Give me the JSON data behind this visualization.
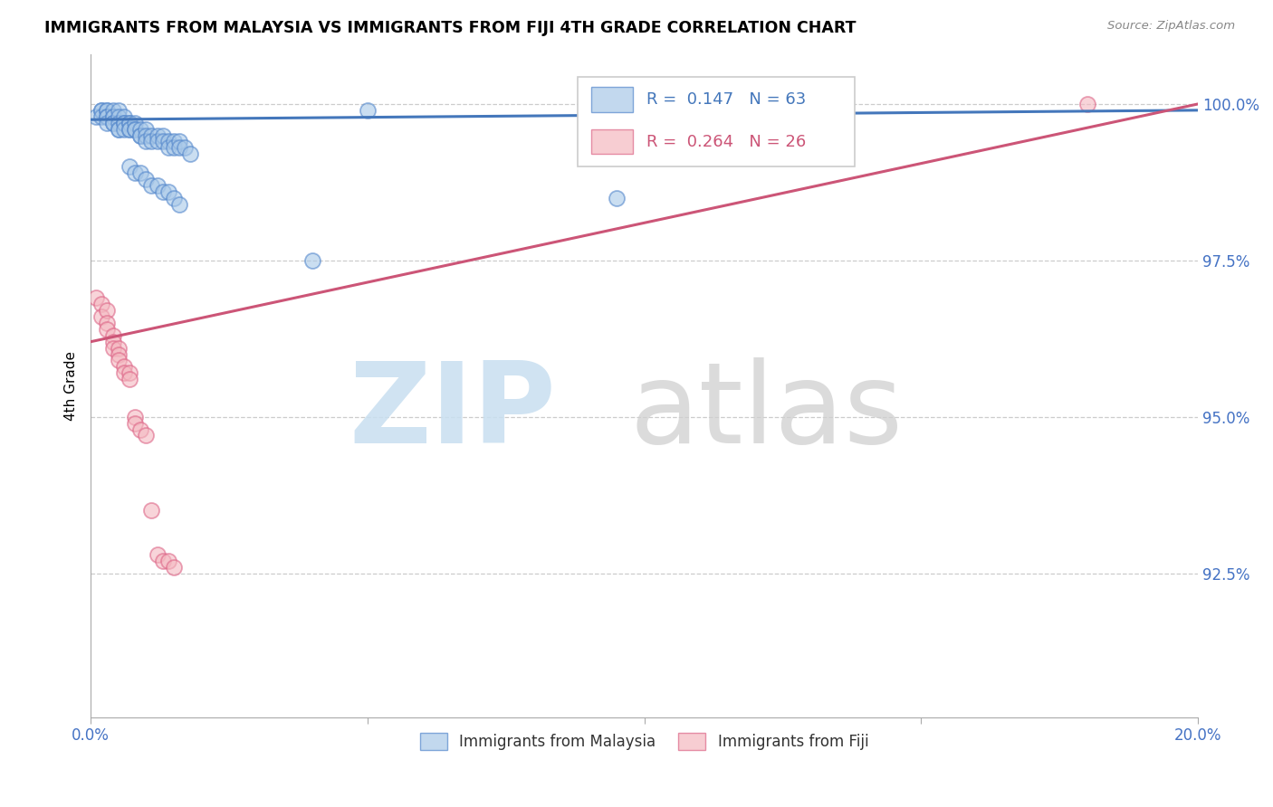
{
  "title": "IMMIGRANTS FROM MALAYSIA VS IMMIGRANTS FROM FIJI 4TH GRADE CORRELATION CHART",
  "source": "Source: ZipAtlas.com",
  "ylabel": "4th Grade",
  "x_min": 0.0,
  "x_max": 0.2,
  "y_min": 0.902,
  "y_max": 1.008,
  "x_ticks": [
    0.0,
    0.05,
    0.1,
    0.15,
    0.2
  ],
  "x_tick_labels": [
    "0.0%",
    "",
    "",
    "",
    "20.0%"
  ],
  "y_ticks": [
    0.925,
    0.95,
    0.975,
    1.0
  ],
  "y_tick_labels": [
    "92.5%",
    "95.0%",
    "97.5%",
    "100.0%"
  ],
  "legend_labels": [
    "Immigrants from Malaysia",
    "Immigrants from Fiji"
  ],
  "blue_color": "#a8c8e8",
  "pink_color": "#f4b8c0",
  "blue_edge_color": "#5588cc",
  "pink_edge_color": "#dd6688",
  "blue_line_color": "#4477bb",
  "pink_line_color": "#cc5577",
  "tick_color": "#4472c4",
  "grid_color": "#cccccc",
  "malaysia_x": [
    0.001,
    0.002,
    0.002,
    0.002,
    0.003,
    0.003,
    0.003,
    0.003,
    0.003,
    0.004,
    0.004,
    0.004,
    0.004,
    0.004,
    0.005,
    0.005,
    0.005,
    0.005,
    0.005,
    0.006,
    0.006,
    0.006,
    0.006,
    0.007,
    0.007,
    0.007,
    0.007,
    0.008,
    0.008,
    0.008,
    0.009,
    0.009,
    0.009,
    0.01,
    0.01,
    0.01,
    0.011,
    0.011,
    0.012,
    0.012,
    0.013,
    0.013,
    0.014,
    0.014,
    0.015,
    0.015,
    0.016,
    0.016,
    0.017,
    0.018,
    0.007,
    0.008,
    0.009,
    0.01,
    0.011,
    0.012,
    0.013,
    0.014,
    0.015,
    0.016,
    0.04,
    0.05,
    0.095
  ],
  "malaysia_y": [
    0.998,
    0.999,
    0.999,
    0.998,
    0.999,
    0.999,
    0.998,
    0.998,
    0.997,
    0.999,
    0.998,
    0.998,
    0.997,
    0.997,
    0.999,
    0.998,
    0.997,
    0.996,
    0.996,
    0.998,
    0.997,
    0.997,
    0.996,
    0.997,
    0.997,
    0.996,
    0.996,
    0.997,
    0.996,
    0.996,
    0.996,
    0.995,
    0.995,
    0.996,
    0.995,
    0.994,
    0.995,
    0.994,
    0.995,
    0.994,
    0.995,
    0.994,
    0.994,
    0.993,
    0.994,
    0.993,
    0.994,
    0.993,
    0.993,
    0.992,
    0.99,
    0.989,
    0.989,
    0.988,
    0.987,
    0.987,
    0.986,
    0.986,
    0.985,
    0.984,
    0.975,
    0.999,
    0.985
  ],
  "fiji_x": [
    0.001,
    0.002,
    0.002,
    0.003,
    0.003,
    0.003,
    0.004,
    0.004,
    0.004,
    0.005,
    0.005,
    0.005,
    0.006,
    0.006,
    0.007,
    0.007,
    0.008,
    0.008,
    0.009,
    0.01,
    0.011,
    0.012,
    0.013,
    0.014,
    0.015,
    0.18
  ],
  "fiji_y": [
    0.969,
    0.968,
    0.966,
    0.967,
    0.965,
    0.964,
    0.963,
    0.962,
    0.961,
    0.961,
    0.96,
    0.959,
    0.958,
    0.957,
    0.957,
    0.956,
    0.95,
    0.949,
    0.948,
    0.947,
    0.935,
    0.928,
    0.927,
    0.927,
    0.926,
    1.0
  ],
  "blue_trendline_x": [
    0.0,
    0.2
  ],
  "blue_trendline_y": [
    0.9975,
    0.999
  ],
  "pink_trendline_x": [
    0.0,
    0.2
  ],
  "pink_trendline_y": [
    0.962,
    1.0
  ]
}
